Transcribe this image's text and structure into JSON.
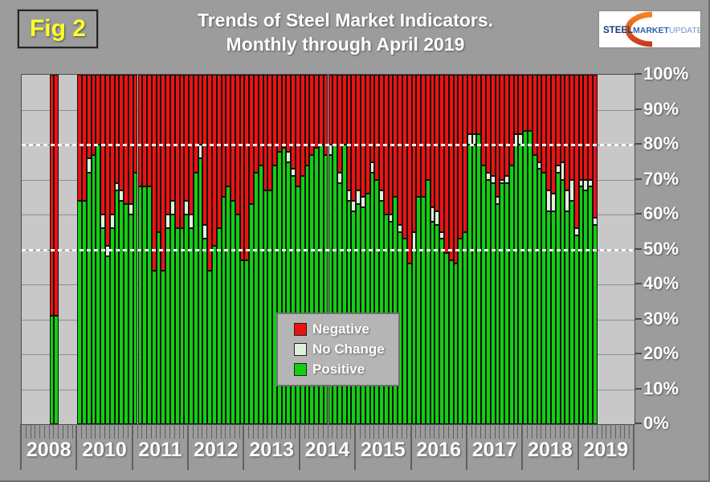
{
  "figure_label": "Fig 2",
  "title": {
    "line1": "Trends of Steel Market Indicators.",
    "line2": "Monthly through April 2019"
  },
  "logo": {
    "word1": "STEEL",
    "word2": "MARKET",
    "word3": "UPDATE",
    "colors": {
      "word1": "#1a3a80",
      "word2": "#2b62ae",
      "word3": "#7496c6",
      "swoosh_top": "#f5821f",
      "swoosh_bottom": "#c93a1e"
    }
  },
  "legend": {
    "items": [
      {
        "label": "Negative",
        "color": "#ee1111"
      },
      {
        "label": "No Change",
        "color": "#def2da"
      },
      {
        "label": "Positive",
        "color": "#10d010"
      }
    ]
  },
  "y_axis": {
    "labels": [
      "100%",
      "90%",
      "80%",
      "70%",
      "60%",
      "50%",
      "40%",
      "30%",
      "20%",
      "10%",
      "0%"
    ]
  },
  "chart_data": {
    "type": "bar",
    "stacked": true,
    "unit": "percent of respondents",
    "ylim": [
      0,
      100
    ],
    "grid": "horizontal every 10%",
    "reference_lines_pct": [
      80,
      50
    ],
    "legend_position": "center",
    "segment_colors": {
      "pos": "#10d010",
      "nc": "#def2da",
      "neg": "#ee1111"
    },
    "segment_meaning": {
      "pos": "Positive",
      "nc": "No Change",
      "neg": "Negative"
    },
    "years": [
      {
        "label": "2008",
        "months": [
          null,
          null,
          null,
          null,
          null,
          null,
          {
            "pos": 31,
            "nc": 0,
            "neg": 69
          },
          {
            "pos": 31,
            "nc": 0,
            "neg": 69
          },
          null,
          null,
          null,
          null
        ]
      },
      {
        "label": "2010",
        "months": [
          {
            "pos": 64,
            "nc": 0,
            "neg": 36
          },
          {
            "pos": 64,
            "nc": 0,
            "neg": 36
          },
          {
            "pos": 72,
            "nc": 4,
            "neg": 24
          },
          {
            "pos": 77,
            "nc": 0,
            "neg": 23
          },
          {
            "pos": 80,
            "nc": 0,
            "neg": 20
          },
          {
            "pos": 56,
            "nc": 4,
            "neg": 40
          },
          {
            "pos": 48,
            "nc": 3,
            "neg": 49
          },
          {
            "pos": 56,
            "nc": 4,
            "neg": 40
          },
          {
            "pos": 67,
            "nc": 2,
            "neg": 31
          },
          {
            "pos": 64,
            "nc": 3,
            "neg": 33
          },
          {
            "pos": 63,
            "nc": 0,
            "neg": 37
          },
          {
            "pos": 60,
            "nc": 3,
            "neg": 37
          }
        ]
      },
      {
        "label": "2011",
        "months": [
          {
            "pos": 72,
            "nc": 0,
            "neg": 28
          },
          {
            "pos": 68,
            "nc": 0,
            "neg": 32
          },
          {
            "pos": 68,
            "nc": 0,
            "neg": 32
          },
          {
            "pos": 68,
            "nc": 0,
            "neg": 32
          },
          {
            "pos": 44,
            "nc": 0,
            "neg": 56
          },
          {
            "pos": 55,
            "nc": 0,
            "neg": 45
          },
          {
            "pos": 44,
            "nc": 0,
            "neg": 56
          },
          {
            "pos": 56,
            "nc": 4,
            "neg": 40
          },
          {
            "pos": 60,
            "nc": 4,
            "neg": 36
          },
          {
            "pos": 56,
            "nc": 0,
            "neg": 44
          },
          {
            "pos": 56,
            "nc": 0,
            "neg": 44
          },
          {
            "pos": 60,
            "nc": 4,
            "neg": 36
          }
        ]
      },
      {
        "label": "2012",
        "months": [
          {
            "pos": 56,
            "nc": 4,
            "neg": 40
          },
          {
            "pos": 72,
            "nc": 0,
            "neg": 28
          },
          {
            "pos": 76,
            "nc": 4,
            "neg": 20
          },
          {
            "pos": 53,
            "nc": 4,
            "neg": 43
          },
          {
            "pos": 44,
            "nc": 0,
            "neg": 56
          },
          {
            "pos": 51,
            "nc": 0,
            "neg": 49
          },
          {
            "pos": 56,
            "nc": 0,
            "neg": 44
          },
          {
            "pos": 65,
            "nc": 0,
            "neg": 35
          },
          {
            "pos": 68,
            "nc": 0,
            "neg": 32
          },
          {
            "pos": 64,
            "nc": 0,
            "neg": 36
          },
          {
            "pos": 60,
            "nc": 0,
            "neg": 40
          },
          {
            "pos": 47,
            "nc": 0,
            "neg": 53
          }
        ]
      },
      {
        "label": "2013",
        "months": [
          {
            "pos": 47,
            "nc": 0,
            "neg": 53
          },
          {
            "pos": 63,
            "nc": 0,
            "neg": 37
          },
          {
            "pos": 72,
            "nc": 0,
            "neg": 28
          },
          {
            "pos": 74,
            "nc": 0,
            "neg": 26
          },
          {
            "pos": 67,
            "nc": 0,
            "neg": 33
          },
          {
            "pos": 67,
            "nc": 0,
            "neg": 33
          },
          {
            "pos": 74,
            "nc": 0,
            "neg": 26
          },
          {
            "pos": 78,
            "nc": 0,
            "neg": 22
          },
          {
            "pos": 79,
            "nc": 0,
            "neg": 21
          },
          {
            "pos": 75,
            "nc": 3,
            "neg": 22
          },
          {
            "pos": 71,
            "nc": 2,
            "neg": 27
          },
          {
            "pos": 68,
            "nc": 0,
            "neg": 32
          }
        ]
      },
      {
        "label": "2014",
        "months": [
          {
            "pos": 71,
            "nc": 0,
            "neg": 29
          },
          {
            "pos": 74,
            "nc": 0,
            "neg": 26
          },
          {
            "pos": 77,
            "nc": 0,
            "neg": 23
          },
          {
            "pos": 79,
            "nc": 0,
            "neg": 21
          },
          {
            "pos": 80,
            "nc": 0,
            "neg": 20
          },
          {
            "pos": 77,
            "nc": 0,
            "neg": 23
          },
          {
            "pos": 77,
            "nc": 3,
            "neg": 20
          },
          {
            "pos": 80,
            "nc": 0,
            "neg": 20
          },
          {
            "pos": 69,
            "nc": 3,
            "neg": 28
          },
          {
            "pos": 80,
            "nc": 0,
            "neg": 20
          },
          {
            "pos": 64,
            "nc": 3,
            "neg": 33
          },
          {
            "pos": 61,
            "nc": 3,
            "neg": 36
          }
        ]
      },
      {
        "label": "2015",
        "months": [
          {
            "pos": 63,
            "nc": 4,
            "neg": 33
          },
          {
            "pos": 62,
            "nc": 3,
            "neg": 35
          },
          {
            "pos": 66,
            "nc": 0,
            "neg": 34
          },
          {
            "pos": 72,
            "nc": 3,
            "neg": 25
          },
          {
            "pos": 70,
            "nc": 0,
            "neg": 30
          },
          {
            "pos": 64,
            "nc": 3,
            "neg": 33
          },
          {
            "pos": 60,
            "nc": 0,
            "neg": 40
          },
          {
            "pos": 58,
            "nc": 2,
            "neg": 40
          },
          {
            "pos": 65,
            "nc": 0,
            "neg": 35
          },
          {
            "pos": 55,
            "nc": 2,
            "neg": 43
          },
          {
            "pos": 53,
            "nc": 0,
            "neg": 47
          },
          {
            "pos": 46,
            "nc": 0,
            "neg": 54
          }
        ]
      },
      {
        "label": "2016",
        "months": [
          {
            "pos": 50,
            "nc": 5,
            "neg": 45
          },
          {
            "pos": 65,
            "nc": 0,
            "neg": 35
          },
          {
            "pos": 65,
            "nc": 0,
            "neg": 35
          },
          {
            "pos": 70,
            "nc": 0,
            "neg": 30
          },
          {
            "pos": 58,
            "nc": 4,
            "neg": 38
          },
          {
            "pos": 57,
            "nc": 4,
            "neg": 39
          },
          {
            "pos": 53,
            "nc": 2,
            "neg": 45
          },
          {
            "pos": 49,
            "nc": 0,
            "neg": 51
          },
          {
            "pos": 47,
            "nc": 0,
            "neg": 53
          },
          {
            "pos": 46,
            "nc": 0,
            "neg": 54
          },
          {
            "pos": 53,
            "nc": 0,
            "neg": 47
          },
          {
            "pos": 55,
            "nc": 0,
            "neg": 45
          }
        ]
      },
      {
        "label": "2017",
        "months": [
          {
            "pos": 80,
            "nc": 3,
            "neg": 17
          },
          {
            "pos": 80,
            "nc": 3,
            "neg": 17
          },
          {
            "pos": 83,
            "nc": 0,
            "neg": 17
          },
          {
            "pos": 74,
            "nc": 0,
            "neg": 26
          },
          {
            "pos": 70,
            "nc": 2,
            "neg": 28
          },
          {
            "pos": 69,
            "nc": 2,
            "neg": 29
          },
          {
            "pos": 63,
            "nc": 2,
            "neg": 35
          },
          {
            "pos": 69,
            "nc": 1,
            "neg": 30
          },
          {
            "pos": 69,
            "nc": 2,
            "neg": 29
          },
          {
            "pos": 74,
            "nc": 0,
            "neg": 26
          },
          {
            "pos": 80,
            "nc": 3,
            "neg": 17
          },
          {
            "pos": 80,
            "nc": 3,
            "neg": 17
          }
        ]
      },
      {
        "label": "2018",
        "months": [
          {
            "pos": 84,
            "nc": 0,
            "neg": 16
          },
          {
            "pos": 84,
            "nc": 0,
            "neg": 16
          },
          {
            "pos": 77,
            "nc": 0,
            "neg": 23
          },
          {
            "pos": 73,
            "nc": 2,
            "neg": 25
          },
          {
            "pos": 72,
            "nc": 0,
            "neg": 28
          },
          {
            "pos": 61,
            "nc": 6,
            "neg": 33
          },
          {
            "pos": 61,
            "nc": 5,
            "neg": 34
          },
          {
            "pos": 72,
            "nc": 2,
            "neg": 26
          },
          {
            "pos": 70,
            "nc": 5,
            "neg": 25
          },
          {
            "pos": 61,
            "nc": 6,
            "neg": 33
          },
          {
            "pos": 64,
            "nc": 6,
            "neg": 30
          },
          {
            "pos": 54,
            "nc": 2,
            "neg": 44
          }
        ]
      },
      {
        "label": "2019",
        "months": [
          {
            "pos": 68,
            "nc": 2,
            "neg": 30
          },
          {
            "pos": 67,
            "nc": 3,
            "neg": 30
          },
          {
            "pos": 68,
            "nc": 2,
            "neg": 30
          },
          {
            "pos": 57,
            "nc": 2,
            "neg": 41
          },
          null,
          null,
          null,
          null,
          null,
          null,
          null,
          null
        ]
      }
    ]
  }
}
